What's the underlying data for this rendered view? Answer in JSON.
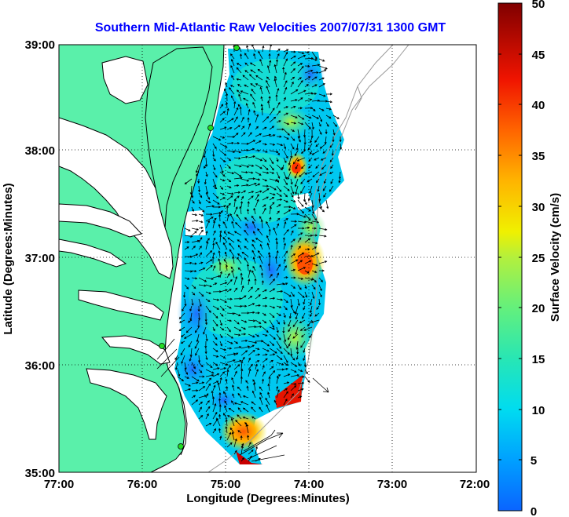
{
  "title": "Southern Mid-Atlantic Raw Velocities 2007/07/31 1300 GMT",
  "xlabel": "Longitude (Degrees:Minutes)",
  "ylabel": "Latitude (Degrees:Minutes)",
  "x_ticks": [
    "77:00",
    "76:00",
    "75:00",
    "74:00",
    "73:00",
    "72:00"
  ],
  "y_ticks": [
    "39:00",
    "38:00",
    "37:00",
    "36:00",
    "35:00"
  ],
  "colorbar": {
    "label": "Surface Velocity (cm/s)",
    "ticks": [
      "0",
      "5",
      "10",
      "15",
      "20",
      "25",
      "30",
      "35",
      "40",
      "45",
      "50"
    ],
    "range": [
      0,
      50
    ],
    "colors": [
      "#0a64ff",
      "#00c8ff",
      "#1ee6c8",
      "#5af08c",
      "#b4f03c",
      "#f0f000",
      "#ffb400",
      "#ff6400",
      "#ff1400",
      "#b40000",
      "#800000"
    ]
  },
  "map": {
    "lon_range": [
      -77,
      -72
    ],
    "lat_range": [
      35,
      39
    ],
    "land_color": "#5af0aa",
    "coast_color": "#000000",
    "bathymetry_color": "#9a9a9a",
    "grid": "dotted",
    "station_color": "#22dd22"
  }
}
